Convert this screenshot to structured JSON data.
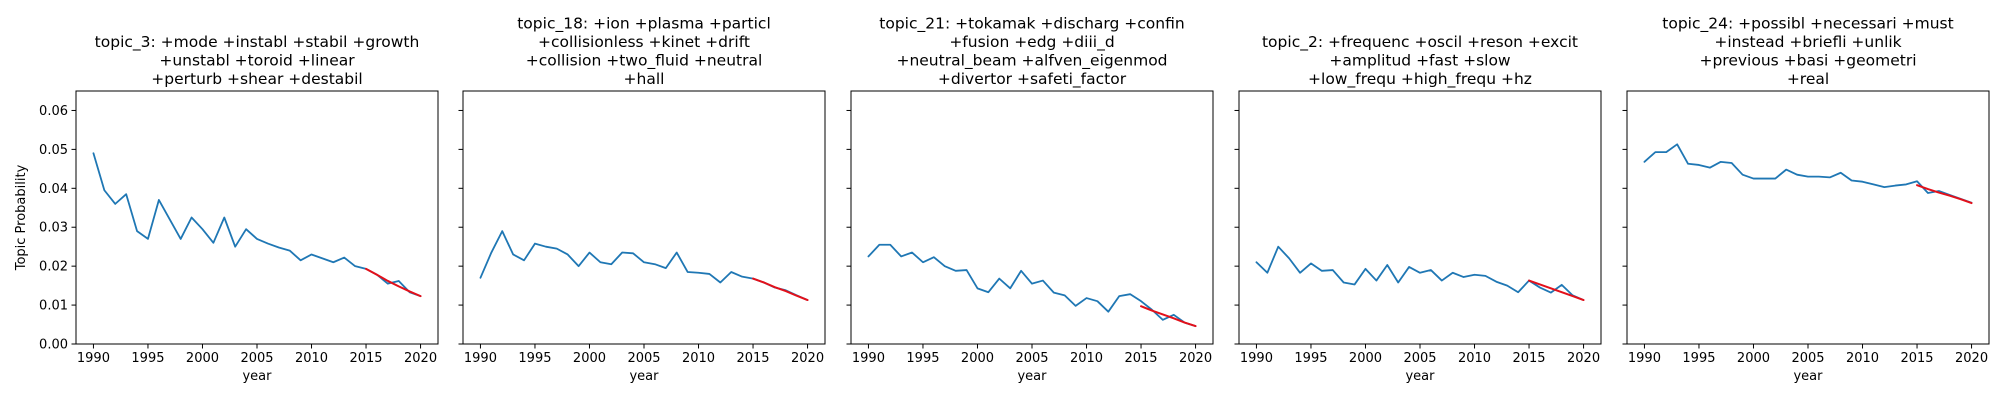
{
  "chart_data": [
    {
      "type": "line",
      "title": [
        "topic_3: +mode +instabl +stabil +growth",
        "+unstabl +toroid +linear",
        "+perturb +shear +destabil"
      ],
      "xlabel": "year",
      "ylabel": "Topic Probability",
      "xlim": [
        1988.4,
        2021.6
      ],
      "ylim": [
        0,
        0.065
      ],
      "xticks": [
        1990,
        1995,
        2000,
        2005,
        2010,
        2015,
        2020
      ],
      "yticks": [
        0.0,
        0.01,
        0.02,
        0.03,
        0.04,
        0.05,
        0.06
      ],
      "ytick_labels": [
        "0.00",
        "0.01",
        "0.02",
        "0.03",
        "0.04",
        "0.05",
        "0.06"
      ],
      "grid": false,
      "series": [
        {
          "color": "#1f77b4",
          "x": [
            1990,
            1991,
            1992,
            1993,
            1994,
            1995,
            1996,
            1997,
            1998,
            1999,
            2000,
            2001,
            2002,
            2003,
            2004,
            2005,
            2006,
            2007,
            2008,
            2009,
            2010,
            2011,
            2012,
            2013,
            2014,
            2015,
            2016,
            2017,
            2018,
            2019,
            2020
          ],
          "y": [
            0.049,
            0.0395,
            0.036,
            0.0385,
            0.029,
            0.027,
            0.037,
            0.032,
            0.027,
            0.0325,
            0.0295,
            0.026,
            0.0325,
            0.025,
            0.0295,
            0.027,
            0.0258,
            0.0248,
            0.024,
            0.0215,
            0.023,
            0.022,
            0.021,
            0.0222,
            0.02,
            0.0193,
            0.0178,
            0.0155,
            0.0162,
            0.0133,
            0.0123
          ]
        },
        {
          "color": "#e3101a",
          "x": [
            2015,
            2016,
            2017,
            2018,
            2019,
            2020
          ],
          "y": [
            0.0193,
            0.0178,
            0.0162,
            0.0148,
            0.0135,
            0.0123
          ]
        }
      ]
    },
    {
      "type": "line",
      "title": [
        "topic_18: +ion +plasma +particl",
        "+collisionless +kinet +drift",
        "+collision +two_fluid +neutral",
        "+hall"
      ],
      "xlabel": "year",
      "ylabel": "",
      "xlim": [
        1988.4,
        2021.6
      ],
      "ylim": [
        0,
        0.065
      ],
      "xticks": [
        1990,
        1995,
        2000,
        2005,
        2010,
        2015,
        2020
      ],
      "yticks": [
        0.0,
        0.01,
        0.02,
        0.03,
        0.04,
        0.05,
        0.06
      ],
      "grid": false,
      "series": [
        {
          "color": "#1f77b4",
          "x": [
            1990,
            1991,
            1992,
            1993,
            1994,
            1995,
            1996,
            1997,
            1998,
            1999,
            2000,
            2001,
            2002,
            2003,
            2004,
            2005,
            2006,
            2007,
            2008,
            2009,
            2010,
            2011,
            2012,
            2013,
            2014,
            2015,
            2016,
            2017,
            2018,
            2019,
            2020
          ],
          "y": [
            0.017,
            0.0235,
            0.029,
            0.023,
            0.0215,
            0.0258,
            0.025,
            0.0245,
            0.023,
            0.02,
            0.0235,
            0.021,
            0.0205,
            0.0235,
            0.0233,
            0.021,
            0.0205,
            0.0195,
            0.0235,
            0.0185,
            0.0183,
            0.018,
            0.0158,
            0.0185,
            0.0173,
            0.0168,
            0.0158,
            0.0145,
            0.0138,
            0.0125,
            0.0113
          ]
        },
        {
          "color": "#e3101a",
          "x": [
            2015,
            2016,
            2017,
            2018,
            2019,
            2020
          ],
          "y": [
            0.0168,
            0.0158,
            0.0146,
            0.0136,
            0.0124,
            0.0113
          ]
        }
      ]
    },
    {
      "type": "line",
      "title": [
        "topic_21: +tokamak +discharg +confin",
        "+fusion +edg +diii_d",
        "+neutral_beam +alfven_eigenmod",
        "+divertor +safeti_factor"
      ],
      "xlabel": "year",
      "ylabel": "",
      "xlim": [
        1988.4,
        2021.6
      ],
      "ylim": [
        0,
        0.065
      ],
      "xticks": [
        1990,
        1995,
        2000,
        2005,
        2010,
        2015,
        2020
      ],
      "yticks": [
        0.0,
        0.01,
        0.02,
        0.03,
        0.04,
        0.05,
        0.06
      ],
      "grid": false,
      "series": [
        {
          "color": "#1f77b4",
          "x": [
            1990,
            1991,
            1992,
            1993,
            1994,
            1995,
            1996,
            1997,
            1998,
            1999,
            2000,
            2001,
            2002,
            2003,
            2004,
            2005,
            2006,
            2007,
            2008,
            2009,
            2010,
            2011,
            2012,
            2013,
            2014,
            2015,
            2016,
            2017,
            2018,
            2019,
            2020
          ],
          "y": [
            0.0225,
            0.0255,
            0.0255,
            0.0225,
            0.0235,
            0.021,
            0.0223,
            0.02,
            0.0188,
            0.019,
            0.0143,
            0.0133,
            0.0168,
            0.0143,
            0.0188,
            0.0155,
            0.0163,
            0.0132,
            0.0125,
            0.0098,
            0.0118,
            0.011,
            0.0083,
            0.0123,
            0.0128,
            0.011,
            0.0088,
            0.0062,
            0.0075,
            0.0055,
            0.0046
          ]
        },
        {
          "color": "#e3101a",
          "x": [
            2015,
            2016,
            2017,
            2018,
            2019,
            2020
          ],
          "y": [
            0.0097,
            0.0086,
            0.0076,
            0.0066,
            0.0055,
            0.0046
          ]
        }
      ]
    },
    {
      "type": "line",
      "title": [
        "topic_2: +frequenc +oscil +reson +excit",
        "+amplitud +fast +slow",
        "+low_frequ +high_frequ +hz"
      ],
      "xlabel": "year",
      "ylabel": "",
      "xlim": [
        1988.4,
        2021.6
      ],
      "ylim": [
        0,
        0.065
      ],
      "xticks": [
        1990,
        1995,
        2000,
        2005,
        2010,
        2015,
        2020
      ],
      "yticks": [
        0.0,
        0.01,
        0.02,
        0.03,
        0.04,
        0.05,
        0.06
      ],
      "grid": false,
      "series": [
        {
          "color": "#1f77b4",
          "x": [
            1990,
            1991,
            1992,
            1993,
            1994,
            1995,
            1996,
            1997,
            1998,
            1999,
            2000,
            2001,
            2002,
            2003,
            2004,
            2005,
            2006,
            2007,
            2008,
            2009,
            2010,
            2011,
            2012,
            2013,
            2014,
            2015,
            2016,
            2017,
            2018,
            2019,
            2020
          ],
          "y": [
            0.021,
            0.0183,
            0.025,
            0.022,
            0.0183,
            0.0207,
            0.0188,
            0.019,
            0.0158,
            0.0153,
            0.0193,
            0.0163,
            0.0203,
            0.0158,
            0.0198,
            0.0183,
            0.019,
            0.0163,
            0.0183,
            0.0172,
            0.0178,
            0.0175,
            0.016,
            0.015,
            0.0133,
            0.0163,
            0.0145,
            0.0132,
            0.0152,
            0.0125,
            0.0113
          ]
        },
        {
          "color": "#e3101a",
          "x": [
            2015,
            2016,
            2017,
            2018,
            2019,
            2020
          ],
          "y": [
            0.0163,
            0.0153,
            0.0143,
            0.0133,
            0.0123,
            0.0113
          ]
        }
      ]
    },
    {
      "type": "line",
      "title": [
        "topic_24: +possibl +necessari +must",
        "+instead +briefli +unlik",
        "+previous +basi +geometri",
        "+real"
      ],
      "xlabel": "year",
      "ylabel": "",
      "xlim": [
        1988.4,
        2021.6
      ],
      "ylim": [
        0,
        0.065
      ],
      "xticks": [
        1990,
        1995,
        2000,
        2005,
        2010,
        2015,
        2020
      ],
      "yticks": [
        0.0,
        0.01,
        0.02,
        0.03,
        0.04,
        0.05,
        0.06
      ],
      "grid": false,
      "series": [
        {
          "color": "#1f77b4",
          "x": [
            1990,
            1991,
            1992,
            1993,
            1994,
            1995,
            1996,
            1997,
            1998,
            1999,
            2000,
            2001,
            2002,
            2003,
            2004,
            2005,
            2006,
            2007,
            2008,
            2009,
            2010,
            2011,
            2012,
            2013,
            2014,
            2015,
            2016,
            2017,
            2018,
            2019,
            2020
          ],
          "y": [
            0.0468,
            0.0493,
            0.0493,
            0.0513,
            0.0463,
            0.046,
            0.0453,
            0.0468,
            0.0465,
            0.0435,
            0.0425,
            0.0425,
            0.0425,
            0.0448,
            0.0435,
            0.043,
            0.043,
            0.0428,
            0.044,
            0.042,
            0.0417,
            0.041,
            0.0403,
            0.0407,
            0.041,
            0.0418,
            0.0388,
            0.0393,
            0.0383,
            0.0373,
            0.0363
          ]
        },
        {
          "color": "#e3101a",
          "x": [
            2015,
            2016,
            2017,
            2018,
            2019,
            2020
          ],
          "y": [
            0.0408,
            0.0398,
            0.0389,
            0.0381,
            0.0372,
            0.0362
          ]
        }
      ]
    }
  ]
}
